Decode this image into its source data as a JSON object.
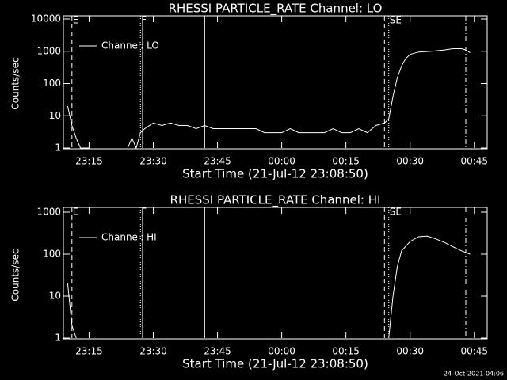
{
  "chart_data": [
    {
      "type": "line",
      "title": "RHESSI PARTICLE_RATE Channel: LO",
      "x_label": "Start Time (21-Jul-12 23:08:50)",
      "y_label": "Counts/sec",
      "log_y": true,
      "xlim": [
        "23:09",
        "00:48"
      ],
      "xticks": [
        "23:15",
        "23:30",
        "23:45",
        "00:00",
        "00:15",
        "00:30",
        "00:45"
      ],
      "ylim": [
        1,
        10000
      ],
      "yticks": [
        1,
        10,
        100,
        1000,
        10000
      ],
      "x": [
        "23:10",
        "23:11",
        "23:12",
        "23:13",
        "23:14",
        "23:15",
        "23:16",
        "23:24",
        "23:25",
        "23:26",
        "23:27",
        "23:28",
        "23:30",
        "23:32",
        "23:34",
        "23:36",
        "23:38",
        "23:40",
        "23:42",
        "23:44",
        "23:46",
        "23:48",
        "23:50",
        "23:52",
        "23:54",
        "23:56",
        "23:58",
        "00:00",
        "00:02",
        "00:04",
        "00:06",
        "00:08",
        "00:10",
        "00:12",
        "00:14",
        "00:16",
        "00:18",
        "00:20",
        "00:22",
        "00:24",
        "00:25",
        "00:26",
        "00:27",
        "00:28",
        "00:29",
        "00:30",
        "00:32",
        "00:35",
        "00:38",
        "00:40",
        "00:42",
        "00:43",
        "00:44"
      ],
      "series": [
        {
          "name": "Channel: LO",
          "color": "#ffffff",
          "values": [
            20,
            5,
            2,
            1,
            1,
            1,
            null,
            1,
            2,
            1,
            3,
            4,
            6,
            5,
            6,
            5,
            5,
            4,
            5,
            4,
            4,
            4,
            4,
            4,
            4,
            3,
            3,
            3,
            4,
            3,
            3,
            3,
            3,
            4,
            3,
            3,
            4,
            3,
            5,
            6,
            8,
            40,
            150,
            350,
            600,
            800,
            950,
            1000,
            1100,
            1200,
            1200,
            1100,
            900
          ]
        }
      ],
      "markers": [
        {
          "x": "23:11",
          "style": "dashed",
          "label": "E"
        },
        {
          "x": "23:27",
          "style": "dotted",
          "label": "F"
        },
        {
          "x": "23:27:30",
          "style": "solid"
        },
        {
          "x": "23:42",
          "style": "solid"
        },
        {
          "x": "00:24",
          "style": "dashed"
        },
        {
          "x": "00:25",
          "style": "dotted",
          "label": "SE"
        },
        {
          "x": "00:43",
          "style": "dashdot"
        }
      ]
    },
    {
      "type": "line",
      "title": "RHESSI PARTICLE_RATE Channel: HI",
      "x_label": "Start Time (21-Jul-12 23:08:50)",
      "y_label": "Counts/sec",
      "log_y": true,
      "xlim": [
        "23:09",
        "00:48"
      ],
      "xticks": [
        "23:15",
        "23:30",
        "23:45",
        "00:00",
        "00:15",
        "00:30",
        "00:45"
      ],
      "ylim": [
        1,
        1000
      ],
      "yticks": [
        1,
        10,
        100,
        1000
      ],
      "x": [
        "23:10",
        "23:11",
        "23:12",
        "23:13",
        "00:25",
        "00:26",
        "00:27",
        "00:28",
        "00:30",
        "00:32",
        "00:34",
        "00:36",
        "00:38",
        "00:40",
        "00:42",
        "00:44"
      ],
      "series": [
        {
          "name": "Channel: HI",
          "color": "#ffffff",
          "values": [
            20,
            2,
            1,
            null,
            1,
            10,
            50,
            120,
            200,
            260,
            270,
            230,
            190,
            150,
            120,
            100
          ]
        }
      ],
      "markers": [
        {
          "x": "23:11",
          "style": "dashed",
          "label": "E"
        },
        {
          "x": "23:27",
          "style": "dotted",
          "label": "F"
        },
        {
          "x": "23:27:30",
          "style": "solid"
        },
        {
          "x": "23:42",
          "style": "solid"
        },
        {
          "x": "00:24",
          "style": "dashed"
        },
        {
          "x": "00:25",
          "style": "dotted",
          "label": "SE"
        },
        {
          "x": "00:43",
          "style": "dashdot"
        }
      ]
    }
  ],
  "footer": "24-Oct-2021 04:06"
}
